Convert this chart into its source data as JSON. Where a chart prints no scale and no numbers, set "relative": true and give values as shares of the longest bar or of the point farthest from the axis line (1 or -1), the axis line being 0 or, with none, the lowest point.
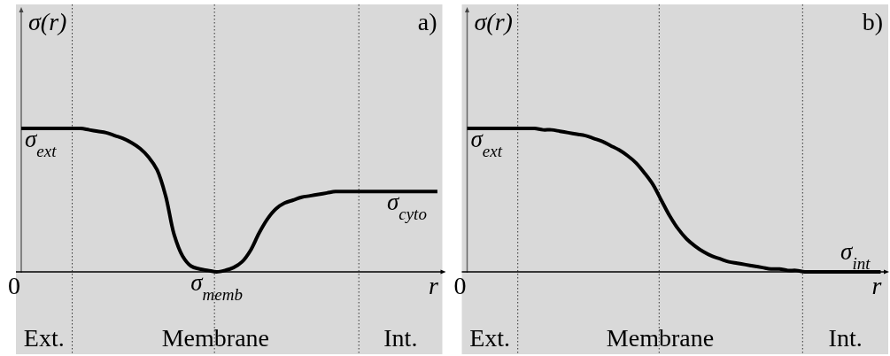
{
  "chart_data": [
    {
      "type": "line",
      "title": "a)",
      "xlabel": "r",
      "ylabel": "σ(r)",
      "relative": true,
      "grid": "x",
      "categories": [
        null,
        null,
        null,
        null,
        null,
        null,
        null,
        null,
        null,
        null,
        null,
        null,
        null,
        null,
        null,
        null,
        null,
        null,
        null,
        null,
        null,
        null,
        null,
        null,
        null,
        null,
        null,
        null,
        null,
        null,
        null,
        null,
        null,
        null,
        null,
        null,
        null,
        null,
        null,
        null,
        null,
        null,
        null,
        null,
        null,
        null,
        null,
        null,
        null,
        null
      ],
      "series": [
        {
          "color": "#000000",
          "values": [
            1,
            1,
            1,
            1,
            1,
            1,
            1,
            1,
            0.99,
            0.98,
            0.97,
            0.95,
            0.93,
            0.9,
            0.86,
            0.8,
            0.71,
            0.53,
            0.26,
            0.11,
            0.04,
            0.02,
            0.01,
            0,
            0.01,
            0.03,
            0.07,
            0.15,
            0.27,
            0.37,
            0.44,
            0.48,
            0.5,
            0.52,
            0.53,
            0.54,
            0.55,
            0.56,
            0.56,
            0.56,
            0.56,
            0.56,
            0.56,
            0.56,
            0.56,
            0.56,
            0.56,
            0.56,
            0.56,
            0.56
          ]
        }
      ],
      "annotations": [
        "0",
        {
          "text": "σ$_{ext}$",
          "y": 1
        },
        {
          "text": "σ$_{memb}$",
          "y": 0
        },
        {
          "text": "σ$_{cyto}$",
          "y": 0.56
        },
        "Ext.",
        "Membrane",
        "Int."
      ]
    },
    {
      "type": "line",
      "title": "b)",
      "xlabel": "r",
      "ylabel": "σ(r)",
      "relative": true,
      "grid": "x",
      "categories": [
        null,
        null,
        null,
        null,
        null,
        null,
        null,
        null,
        null,
        null,
        null,
        null,
        null,
        null,
        null,
        null,
        null,
        null,
        null,
        null,
        null,
        null,
        null,
        null,
        null,
        null,
        null,
        null,
        null,
        null,
        null,
        null,
        null,
        null,
        null,
        null,
        null,
        null,
        null,
        null,
        null,
        null,
        null,
        null,
        null,
        null,
        null,
        null,
        null,
        null
      ],
      "series": [
        {
          "color": "#000000",
          "values": [
            1,
            1,
            1,
            1,
            1,
            1,
            1,
            1,
            1,
            0.99,
            0.99,
            0.98,
            0.97,
            0.96,
            0.95,
            0.93,
            0.91,
            0.88,
            0.85,
            0.81,
            0.76,
            0.69,
            0.61,
            0.5,
            0.39,
            0.3,
            0.23,
            0.18,
            0.14,
            0.11,
            0.09,
            0.07,
            0.06,
            0.05,
            0.04,
            0.03,
            0.02,
            0.02,
            0.01,
            0.01,
            0,
            0,
            0,
            0,
            0,
            0,
            0,
            0,
            0,
            0
          ]
        }
      ],
      "annotations": [
        "0",
        {
          "text": "σ$_{ext}$",
          "y": 1
        },
        {
          "text": "σ$_{int}$",
          "y": 0
        },
        "Ext.",
        "Membrane",
        "Int."
      ]
    }
  ]
}
